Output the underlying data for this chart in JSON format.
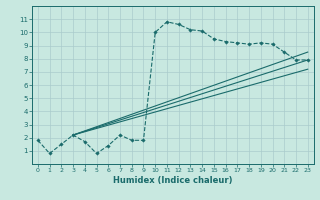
{
  "title": "",
  "xlabel": "Humidex (Indice chaleur)",
  "background_color": "#c8e8e0",
  "grid_color": "#aacccc",
  "line_color": "#1a6b6b",
  "xlim": [
    -0.5,
    23.5
  ],
  "ylim": [
    0,
    12
  ],
  "xticks": [
    0,
    1,
    2,
    3,
    4,
    5,
    6,
    7,
    8,
    9,
    10,
    11,
    12,
    13,
    14,
    15,
    16,
    17,
    18,
    19,
    20,
    21,
    22,
    23
  ],
  "yticks": [
    1,
    2,
    3,
    4,
    5,
    6,
    7,
    8,
    9,
    10,
    11
  ],
  "curve1_x": [
    0,
    1,
    2,
    3,
    4,
    5,
    6,
    7,
    8,
    9,
    10,
    11,
    12,
    13,
    14,
    15,
    16,
    17,
    18,
    19,
    20,
    21,
    22,
    23
  ],
  "curve1_y": [
    1.8,
    0.8,
    1.5,
    2.2,
    1.7,
    0.8,
    1.4,
    2.2,
    1.8,
    1.8,
    10.0,
    10.8,
    10.6,
    10.2,
    10.1,
    9.5,
    9.3,
    9.2,
    9.1,
    9.2,
    9.1,
    8.5,
    7.9,
    7.9
  ],
  "line2_x": [
    3,
    23
  ],
  "line2_y": [
    2.2,
    8.5
  ],
  "line3_x": [
    3,
    23
  ],
  "line3_y": [
    2.2,
    7.9
  ],
  "line4_x": [
    3,
    23
  ],
  "line4_y": [
    2.2,
    7.2
  ]
}
